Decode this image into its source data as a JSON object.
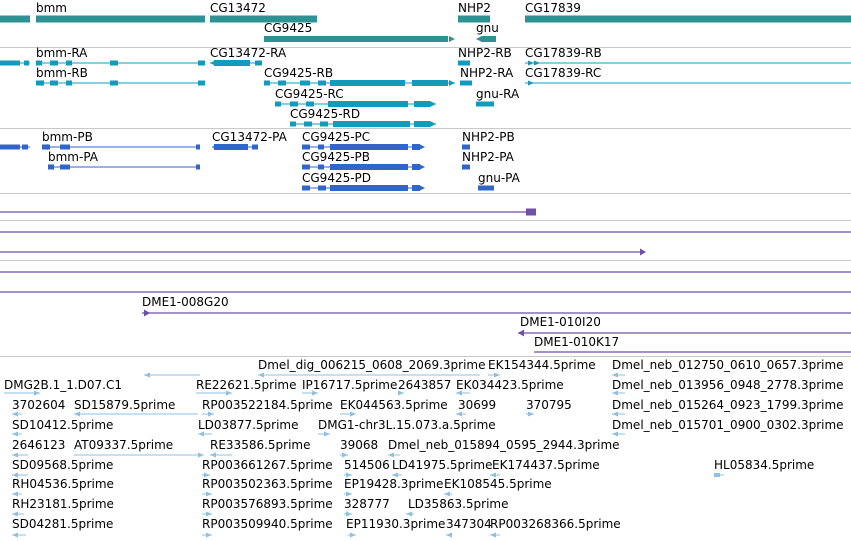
{
  "colors": {
    "gene": "#2e9292",
    "mrna": "#129cbc",
    "cds": "#2f66c7",
    "clone": "#6f4fa8",
    "est": "#8ec0e0",
    "separator": "#c9c9c9"
  },
  "tracks": {
    "genes": [
      "bmm",
      "CG13472",
      "NHP2",
      "CG17839",
      "CG9425",
      "gnu"
    ],
    "transcripts": [
      "bmm-RA",
      "CG13472-RA",
      "NHP2-RB",
      "CG17839-RB",
      "bmm-RB",
      "CG9425-RB",
      "NHP2-RA",
      "CG17839-RC",
      "CG9425-RC",
      "gnu-RA",
      "CG9425-RD"
    ],
    "proteins": [
      "bmm-PB",
      "CG13472-PA",
      "CG9425-PC",
      "NHP2-PB",
      "bmm-PA",
      "CG9425-PB",
      "NHP2-PA",
      "CG9425-PD",
      "gnu-PA"
    ],
    "clones": [
      "DME1-008G20",
      "DME1-010I20",
      "DME1-010K17"
    ],
    "ests": [
      "Dmel_dig_006215_0608_2069.3prime",
      "EK154344.5prime",
      "Dmel_neb_012750_0610_0657.3prime",
      "DMG2B.1_1.D07.C1",
      "RE22621.5prime",
      "IP16717.5prime",
      "2643857",
      "EK034423.5prime",
      "Dmel_neb_013956_0948_2778.3prime",
      "3702604",
      "SD15879.5prime",
      "RP003522184.5prime",
      "EK044563.5prime",
      "30699",
      "370795",
      "Dmel_neb_015264_0923_1799.3prime",
      "SD10412.5prime",
      "LD03877.5prime",
      "DMG1-chr3L.15.073.a.5prime",
      "Dmel_neb_015701_0900_0302.3prime",
      "2646123",
      "AT09337.5prime",
      "RE33586.5prime",
      "39068",
      "Dmel_neb_015894_0595_2944.3prime",
      "SD09568.5prime",
      "RP003661267.5prime",
      "514506",
      "LD41975.5prime",
      "EK174437.5prime",
      "HL05834.5prime",
      "RH04536.5prime",
      "RP003502363.5prime",
      "EP19428.3prime",
      "EK108545.5prime",
      "RH23181.5prime",
      "RP003576893.5prime",
      "328777",
      "LD35863.5prime",
      "SD04281.5prime",
      "RP003509940.5prime",
      "EP11930.3prime",
      "347304",
      "RP003268366.5prime"
    ]
  }
}
